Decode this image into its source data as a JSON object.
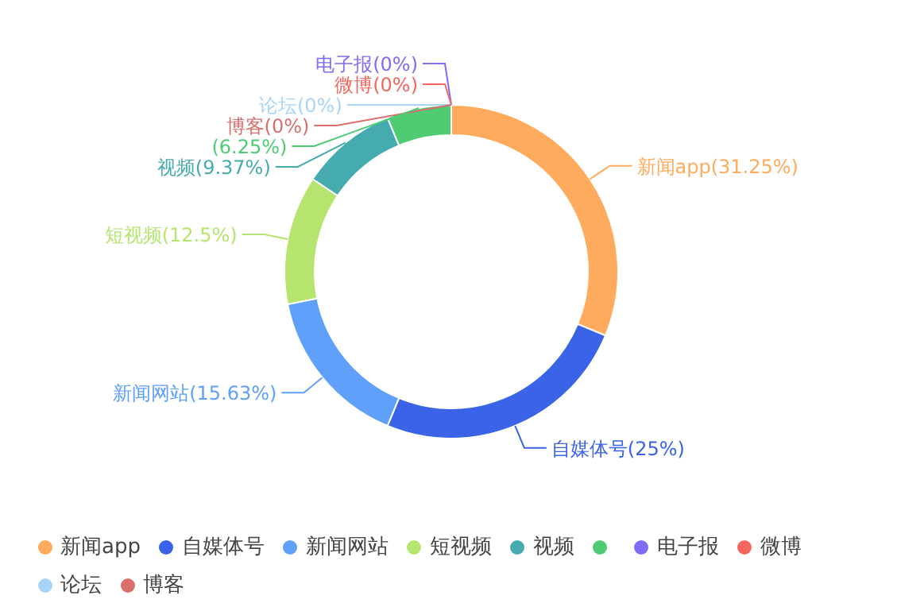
{
  "chart_data": {
    "type": "donut",
    "categories": [
      "新闻app",
      "自媒体号",
      "新闻网站",
      "短视频",
      "视频",
      null,
      "电子报",
      "微博",
      "论坛",
      "博客"
    ],
    "values": [
      31.25,
      25,
      15.63,
      12.5,
      9.37,
      6.25,
      0,
      0,
      0,
      0
    ],
    "colors": [
      "#ffab5e",
      "#3a63e8",
      "#5fa0fa",
      "#b5e56f",
      "#46abae",
      "#4fcb74",
      "#7d6cf5",
      "#f4675f",
      "#a8d4f8",
      "#d86f6d"
    ],
    "value_labels": [
      "新闻app(31.25%)",
      "自媒体号(25%)",
      "新闻网站(15.63%)",
      "短视频(12.5%)",
      "视频(9.37%)",
      "(6.25%)",
      "电子报(0%)",
      "微博(0%)",
      "论坛(0%)",
      "博客(0%)"
    ],
    "legend": "bottom"
  }
}
